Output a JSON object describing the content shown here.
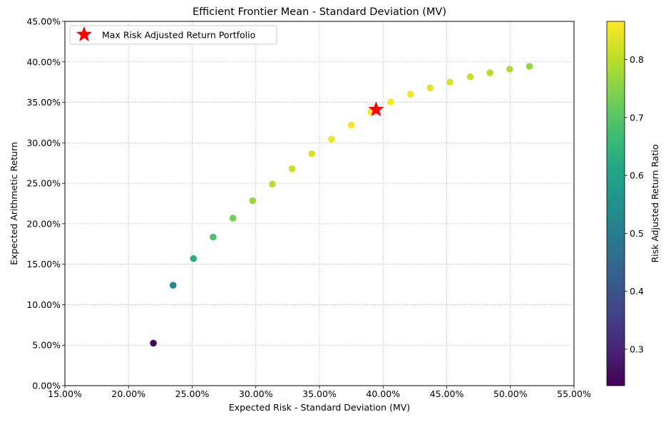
{
  "chart_data": {
    "type": "scatter",
    "title": "Efficient Frontier Mean - Standard Deviation (MV)",
    "xlabel": "Expected Risk - Standard Deviation (MV)",
    "ylabel": "Expected Arithmetic Return",
    "xlim": [
      0.15,
      0.55
    ],
    "ylim": [
      0.0,
      0.45
    ],
    "xticks": [
      0.15,
      0.2,
      0.25,
      0.3,
      0.35,
      0.4,
      0.45,
      0.5,
      0.55
    ],
    "xtick_labels": [
      "15.00%",
      "20.00%",
      "25.00%",
      "30.00%",
      "35.00%",
      "40.00%",
      "45.00%",
      "50.00%",
      "55.00%"
    ],
    "yticks": [
      0.0,
      0.05,
      0.1,
      0.15,
      0.2,
      0.25,
      0.3,
      0.35,
      0.4,
      0.45
    ],
    "ytick_labels": [
      "0.00%",
      "5.00%",
      "10.00%",
      "15.00%",
      "20.00%",
      "25.00%",
      "30.00%",
      "35.00%",
      "40.00%",
      "45.00%"
    ],
    "grid": true,
    "colormap": "viridis",
    "colorbar": {
      "label": "Risk Adjusted Return Ratio",
      "range": [
        0.237,
        0.866
      ],
      "ticks": [
        0.3,
        0.4,
        0.5,
        0.6,
        0.7,
        0.8
      ],
      "tick_labels": [
        "0.3",
        "0.4",
        "0.5",
        "0.6",
        "0.7",
        "0.8"
      ]
    },
    "points": [
      {
        "x": 0.2195,
        "y": 0.0525,
        "c": 0.239
      },
      {
        "x": 0.235,
        "y": 0.124,
        "c": 0.528
      },
      {
        "x": 0.251,
        "y": 0.157,
        "c": 0.626
      },
      {
        "x": 0.2665,
        "y": 0.1835,
        "c": 0.688
      },
      {
        "x": 0.282,
        "y": 0.207,
        "c": 0.734
      },
      {
        "x": 0.2975,
        "y": 0.2285,
        "c": 0.768
      },
      {
        "x": 0.313,
        "y": 0.249,
        "c": 0.796
      },
      {
        "x": 0.3285,
        "y": 0.268,
        "c": 0.816
      },
      {
        "x": 0.344,
        "y": 0.2865,
        "c": 0.833
      },
      {
        "x": 0.3595,
        "y": 0.3045,
        "c": 0.847
      },
      {
        "x": 0.375,
        "y": 0.322,
        "c": 0.859
      },
      {
        "x": 0.3905,
        "y": 0.338,
        "c": 0.866
      },
      {
        "x": 0.406,
        "y": 0.3505,
        "c": 0.863
      },
      {
        "x": 0.4215,
        "y": 0.36,
        "c": 0.854
      },
      {
        "x": 0.437,
        "y": 0.368,
        "c": 0.842
      },
      {
        "x": 0.4525,
        "y": 0.375,
        "c": 0.829
      },
      {
        "x": 0.4685,
        "y": 0.3815,
        "c": 0.814
      },
      {
        "x": 0.484,
        "y": 0.3865,
        "c": 0.799
      },
      {
        "x": 0.4995,
        "y": 0.391,
        "c": 0.783
      },
      {
        "x": 0.515,
        "y": 0.3945,
        "c": 0.766
      }
    ],
    "highlight": {
      "label": "Max Risk Adjusted Return Portfolio",
      "x": 0.3945,
      "y": 0.341,
      "color": "#ff0000"
    },
    "legend_position": "top-left"
  }
}
